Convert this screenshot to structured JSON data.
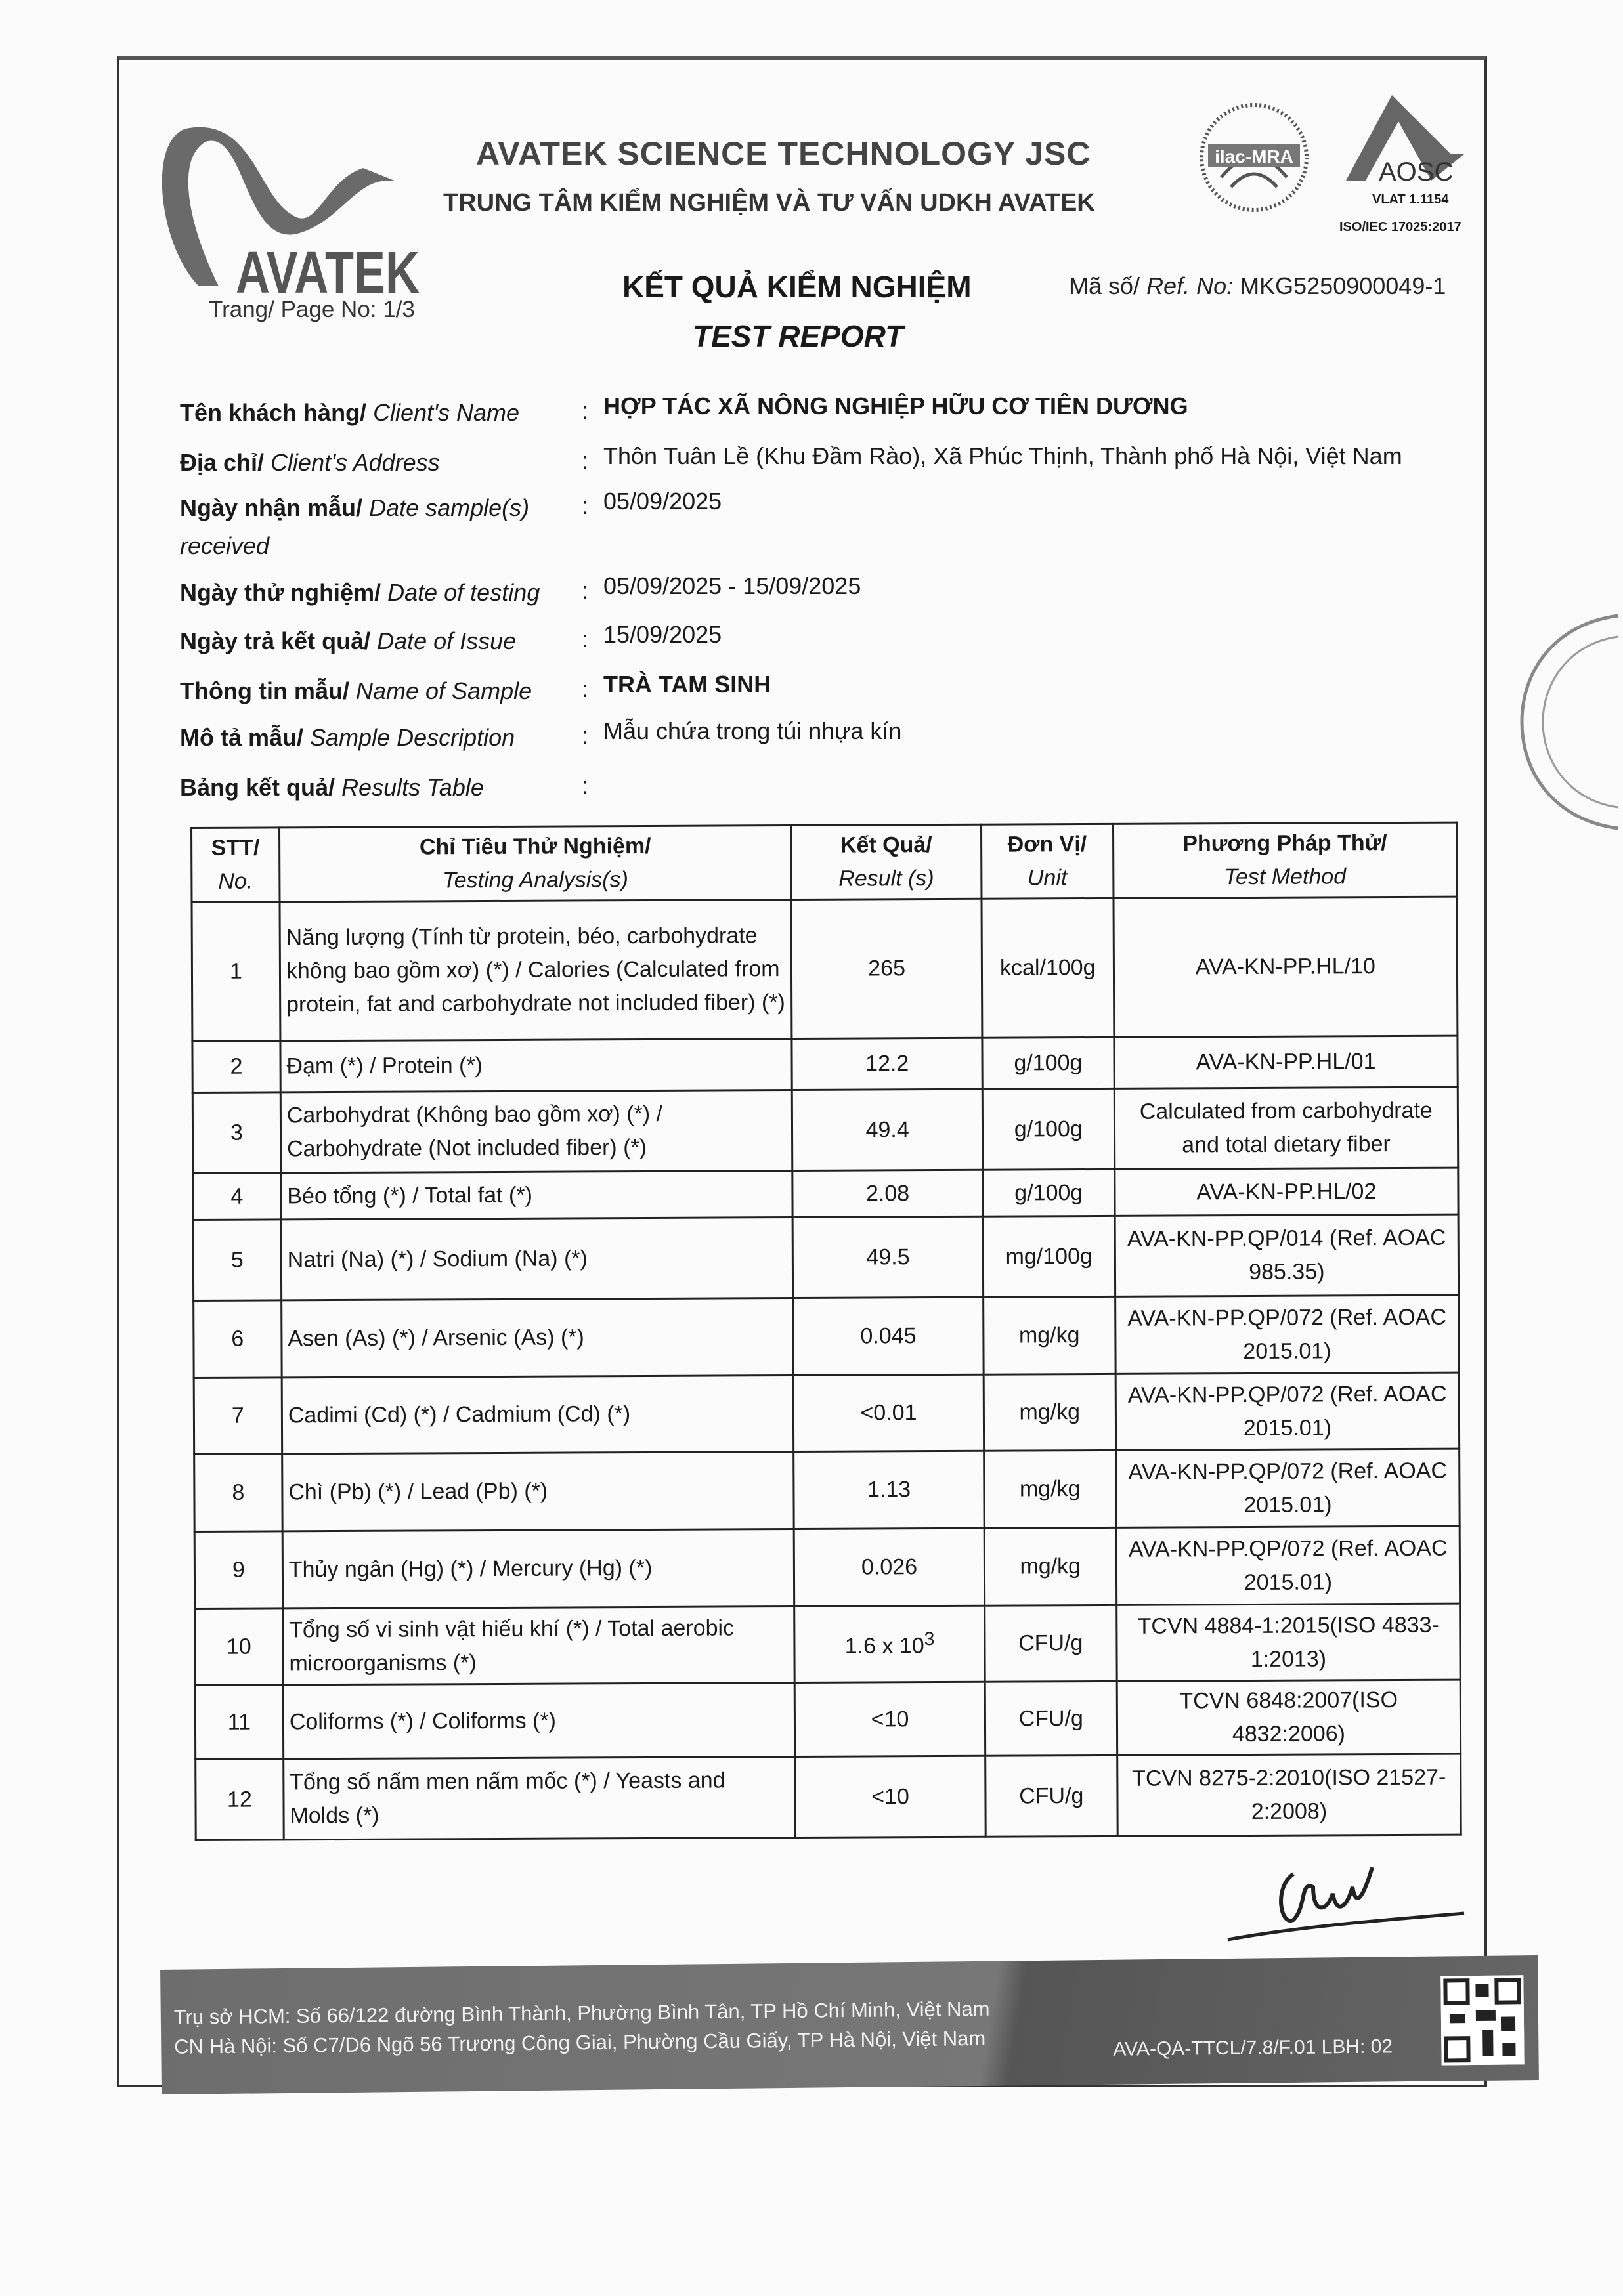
{
  "header": {
    "company_name": "AVATEK SCIENCE TECHNOLOGY JSC",
    "company_subtitle": "TRUNG TÂM KIỂM NGHIỆM VÀ TƯ VẤN UDKH AVATEK",
    "logo_text": "AVATEK",
    "accreditation": {
      "ilac": "ilac-MRA",
      "aosc": "AOSC",
      "vlat": "VLAT 1.1154",
      "iso": "ISO/IEC 17025:2017"
    },
    "page_no_label": "Trang/ Page No: 1/3",
    "title_vi": "KẾT QUẢ KIỂM NGHIỆM",
    "title_en": "TEST REPORT",
    "ref_label_vi": "Mã số/",
    "ref_label_en": "Ref. No:",
    "ref_no": "MKG5250900049-1"
  },
  "info": [
    {
      "label_vi": "Tên khách hàng/",
      "label_en": "Client's Name",
      "value": "HỢP TÁC XÃ NÔNG NGHIỆP HỮU CƠ TIÊN DƯƠNG"
    },
    {
      "label_vi": "Địa chỉ/",
      "label_en": "Client's Address",
      "value": "Thôn Tuân Lề (Khu Đầm Rào), Xã Phúc Thịnh, Thành phố Hà Nội, Việt Nam"
    },
    {
      "label_vi": "Ngày nhận mẫu/",
      "label_en": "Date sample(s) received",
      "value": "05/09/2025"
    },
    {
      "label_vi": "Ngày thử nghiệm/",
      "label_en": "Date of testing",
      "value": "05/09/2025 - 15/09/2025"
    },
    {
      "label_vi": "Ngày trả kết quả/",
      "label_en": "Date of Issue",
      "value": "15/09/2025"
    },
    {
      "label_vi": "Thông tin mẫu/",
      "label_en": "Name of Sample",
      "value": "TRÀ TAM SINH"
    },
    {
      "label_vi": "Mô tả mẫu/",
      "label_en": "Sample Description",
      "value": "Mẫu chứa trong túi nhựa kín"
    },
    {
      "label_vi": "Bảng kết quả/",
      "label_en": "Results Table",
      "value": ""
    }
  ],
  "table": {
    "headers": {
      "no_vi": "STT/",
      "no_en": "No.",
      "analysis_vi": "Chỉ Tiêu Thử Nghiệm/",
      "analysis_en": "Testing Analysis(s)",
      "result_vi": "Kết Quả/",
      "result_en": "Result (s)",
      "unit_vi": "Đơn Vị/",
      "unit_en": "Unit",
      "method_vi": "Phương Pháp Thử/",
      "method_en": "Test Method"
    },
    "rows": [
      {
        "no": "1",
        "analysis": "Năng lượng (Tính từ protein, béo, carbohydrate không bao gồm xơ) (*) / Calories (Calculated from protein, fat and carbohydrate not included fiber) (*)",
        "result": "265",
        "unit": "kcal/100g",
        "method": "AVA-KN-PP.HL/10"
      },
      {
        "no": "2",
        "analysis": "Đạm (*) / Protein (*)",
        "result": "12.2",
        "unit": "g/100g",
        "method": "AVA-KN-PP.HL/01"
      },
      {
        "no": "3",
        "analysis": "Carbohydrat (Không bao gồm xơ) (*) / Carbohydrate (Not included fiber) (*)",
        "result": "49.4",
        "unit": "g/100g",
        "method": "Calculated from carbohydrate and total dietary fiber"
      },
      {
        "no": "4",
        "analysis": "Béo tổng (*) / Total fat (*)",
        "result": "2.08",
        "unit": "g/100g",
        "method": "AVA-KN-PP.HL/02"
      },
      {
        "no": "5",
        "analysis": "Natri (Na) (*) / Sodium (Na) (*)",
        "result": "49.5",
        "unit": "mg/100g",
        "method": "AVA-KN-PP.QP/014 (Ref. AOAC 985.35)"
      },
      {
        "no": "6",
        "analysis": "Asen (As) (*) / Arsenic (As) (*)",
        "result": "0.045",
        "unit": "mg/kg",
        "method": "AVA-KN-PP.QP/072 (Ref. AOAC 2015.01)"
      },
      {
        "no": "7",
        "analysis": "Cadimi (Cd) (*) / Cadmium (Cd) (*)",
        "result": "<0.01",
        "unit": "mg/kg",
        "method": "AVA-KN-PP.QP/072 (Ref. AOAC 2015.01)"
      },
      {
        "no": "8",
        "analysis": "Chì (Pb) (*) / Lead (Pb) (*)",
        "result": "1.13",
        "unit": "mg/kg",
        "method": "AVA-KN-PP.QP/072 (Ref. AOAC 2015.01)"
      },
      {
        "no": "9",
        "analysis": "Thủy ngân (Hg) (*) / Mercury (Hg) (*)",
        "result": "0.026",
        "unit": "mg/kg",
        "method": "AVA-KN-PP.QP/072 (Ref. AOAC 2015.01)"
      },
      {
        "no": "10",
        "analysis": "Tổng số vi sinh vật hiếu khí (*) / Total aerobic microorganisms (*)",
        "result": "1.6 x 10",
        "result_sup": "3",
        "unit": "CFU/g",
        "method": "TCVN 4884-1:2015(ISO 4833-1:2013)"
      },
      {
        "no": "11",
        "analysis": "Coliforms (*) / Coliforms (*)",
        "result": "<10",
        "unit": "CFU/g",
        "method": "TCVN 6848:2007(ISO 4832:2006)"
      },
      {
        "no": "12",
        "analysis": "Tổng số nấm men nấm mốc (*) / Yeasts and Molds (*)",
        "result": "<10",
        "unit": "CFU/g",
        "method": "TCVN 8275-2:2010(ISO 21527-2:2008)"
      }
    ]
  },
  "footer": {
    "hcm": "Trụ sở HCM: Số 66/122 đường Bình Thành, Phường Bình Tân, TP Hồ Chí Minh, Việt Nam",
    "hanoi": "CN Hà Nội: Số C7/D6 Ngõ 56 Trương Công Giai, Phường Cầu Giấy, TP Hà Nội, Việt Nam",
    "form_code": "AVA-QA-TTCL/7.8/F.01 LBH: 02"
  },
  "colors": {
    "footer_band": "#6d6d6d",
    "logo": "#666666"
  }
}
